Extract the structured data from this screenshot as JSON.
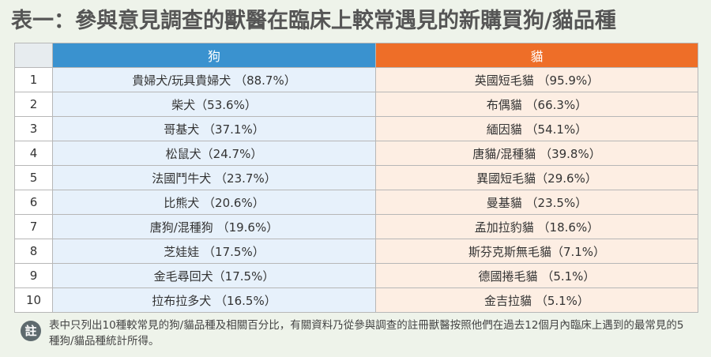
{
  "title": "表一：參與意見調查的獸醫在臨床上較常遇見的新購買狗/貓品種",
  "table": {
    "headers": {
      "index": "",
      "dog": "狗",
      "cat": "貓"
    },
    "rows": [
      {
        "index": "1",
        "dog": "貴婦犬/玩具貴婦犬 （88.7%）",
        "cat": "英國短毛貓 （95.9%）"
      },
      {
        "index": "2",
        "dog": "柴犬（53.6%）",
        "cat": "布偶貓 （66.3%）"
      },
      {
        "index": "3",
        "dog": "哥基犬 （37.1%）",
        "cat": "緬因貓 （54.1%）"
      },
      {
        "index": "4",
        "dog": "松鼠犬（24.7%）",
        "cat": "唐貓/混種貓 （39.8%）"
      },
      {
        "index": "5",
        "dog": "法國鬥牛犬 （23.7%）",
        "cat": "異國短毛貓（29.6%）"
      },
      {
        "index": "6",
        "dog": "比熊犬 （20.6%）",
        "cat": "曼基貓 （23.5%）"
      },
      {
        "index": "7",
        "dog": "唐狗/混種狗 （19.6%）",
        "cat": "孟加拉豹貓 （18.6%）"
      },
      {
        "index": "8",
        "dog": "芝娃娃 （17.5%）",
        "cat": "斯芬克斯無毛貓（7.1%）"
      },
      {
        "index": "9",
        "dog": "金毛尋回犬（17.5%）",
        "cat": "德國捲毛貓 （5.1%）"
      },
      {
        "index": "10",
        "dog": "拉布拉多犬 （16.5%）",
        "cat": "金吉拉貓 （5.1%）"
      }
    ]
  },
  "note": {
    "icon_label": "註",
    "text": "表中只列出10種較常見的狗/貓品種及相關百分比，有關資料乃從參與調查的註冊獸醫按照他們在過去12個月內臨床上遇到的最常見的5種狗/貓品種統計所得。"
  },
  "colors": {
    "dog_header": "#3a92cf",
    "cat_header": "#ee6e28",
    "dog_cell": "#e7f1fb",
    "cat_cell": "#fdeee3"
  }
}
